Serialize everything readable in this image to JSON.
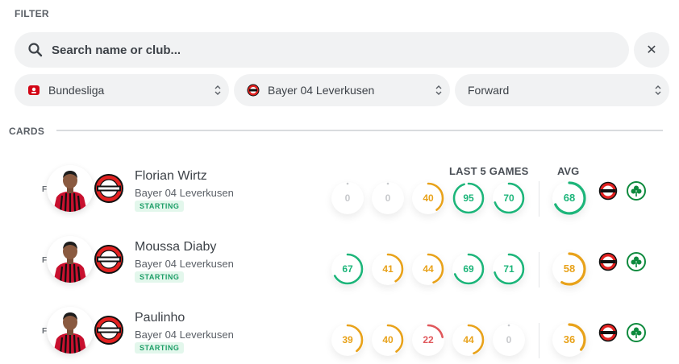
{
  "filter": {
    "title": "FILTER",
    "search_placeholder": "Search name or club...",
    "clear_label": "✕",
    "league": "Bundesliga",
    "club": "Bayer 04 Leverkusen",
    "position": "Forward"
  },
  "cards_section": {
    "title": "CARDS",
    "last5_label": "LAST 5 GAMES",
    "avg_label": "AVG"
  },
  "colors": {
    "green": "#1db57a",
    "orange": "#e8a21a",
    "red": "#e0575b",
    "grey": "#c7c9cc"
  },
  "players": [
    {
      "position": "F",
      "name": "Florian Wirtz",
      "club": "Bayer 04 Leverkusen",
      "status": "STARTING",
      "last5": [
        0,
        0,
        40,
        95,
        70
      ],
      "avg": 68
    },
    {
      "position": "F",
      "name": "Moussa Diaby",
      "club": "Bayer 04 Leverkusen",
      "status": "STARTING",
      "last5": [
        67,
        41,
        44,
        69,
        71
      ],
      "avg": 58
    },
    {
      "position": "F",
      "name": "Paulinho",
      "club": "Bayer 04 Leverkusen",
      "status": "STARTING",
      "last5": [
        39,
        40,
        22,
        44,
        0
      ],
      "avg": 36
    }
  ]
}
